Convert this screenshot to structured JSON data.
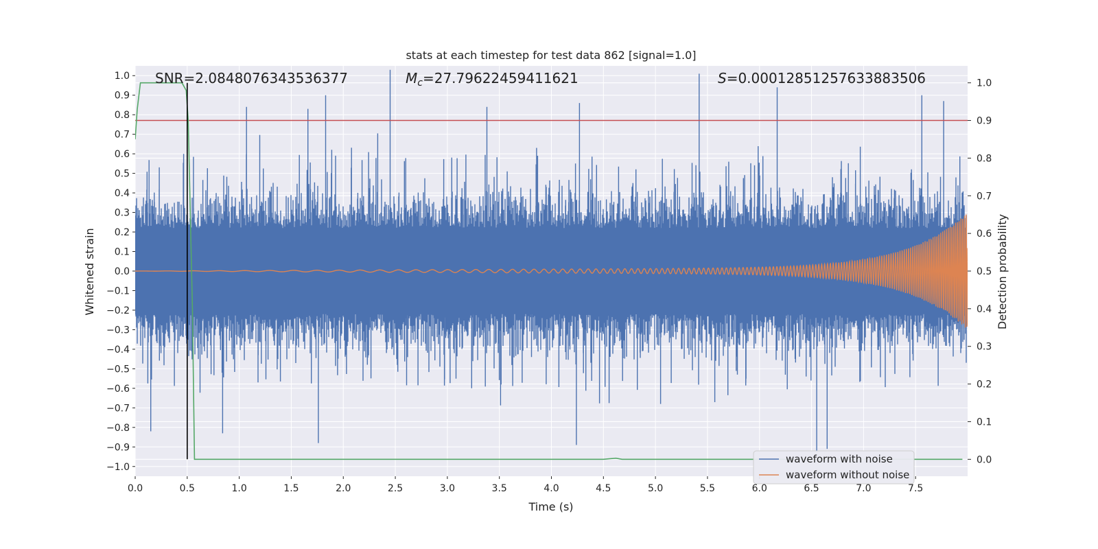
{
  "chart_data": {
    "type": "line",
    "title": "stats at each timestep for test data 862 [signal=1.0]",
    "xlabel": "Time (s)",
    "ylabel": "Whitened strain",
    "y2label": "Detection probability",
    "xlim": [
      0.0,
      8.0
    ],
    "ylim": [
      -1.05,
      1.05
    ],
    "y2lim": [
      -0.045,
      1.045
    ],
    "grid": true,
    "legend_position": "bottom-right",
    "xticks": [
      "0.0",
      "0.5",
      "1.0",
      "1.5",
      "2.0",
      "2.5",
      "3.0",
      "3.5",
      "4.0",
      "4.5",
      "5.0",
      "5.5",
      "6.0",
      "6.5",
      "7.0",
      "7.5"
    ],
    "yticks": [
      "1.0",
      "0.9",
      "0.8",
      "0.7",
      "0.6",
      "0.5",
      "0.4",
      "0.3",
      "0.2",
      "0.1",
      "0.0",
      "−0.1",
      "−0.2",
      "−0.3",
      "−0.4",
      "−0.5",
      "−0.6",
      "−0.7",
      "−0.8",
      "−0.9",
      "−1.0"
    ],
    "y2ticks": [
      "1.0",
      "0.9",
      "0.8",
      "0.7",
      "0.6",
      "0.5",
      "0.4",
      "0.3",
      "0.2",
      "0.1",
      "0.0"
    ],
    "annotations": {
      "snr": "SNR=2.0848076343536377",
      "mc_symbol": "M",
      "mc_subscript": "c",
      "mc_value": "=27.79622459411621",
      "s_symbol": "S",
      "s_value": "=0.0001285125763388350​6"
    },
    "series": [
      {
        "name": "waveform with noise",
        "color": "#4c72b0",
        "axis": "left",
        "description_values": {
          "t_start": 0.0,
          "t_end": 7.99,
          "core_band": [
            -0.22,
            0.22
          ],
          "typical_max": 0.6,
          "typical_min": -0.6,
          "peaks": [
            {
              "t": 1.07,
              "y": 0.84
            },
            {
              "t": 1.66,
              "y": 0.83
            },
            {
              "t": 1.83,
              "y": 0.9
            },
            {
              "t": 2.45,
              "y": 1.03
            },
            {
              "t": 3.38,
              "y": 0.84
            },
            {
              "t": 4.27,
              "y": 0.86
            },
            {
              "t": 5.42,
              "y": 1.01
            },
            {
              "t": 6.17,
              "y": 0.94
            },
            {
              "t": 7.56,
              "y": 0.9
            },
            {
              "t": 7.77,
              "y": 0.87
            }
          ],
          "troughs": [
            {
              "t": 0.15,
              "y": -0.82
            },
            {
              "t": 0.84,
              "y": -0.83
            },
            {
              "t": 1.76,
              "y": -0.88
            },
            {
              "t": 4.24,
              "y": -0.89
            },
            {
              "t": 6.55,
              "y": -0.92
            },
            {
              "t": 6.65,
              "y": -0.91
            }
          ]
        }
      },
      {
        "name": "waveform without noise",
        "color": "#dd8452",
        "axis": "left",
        "chirp": {
          "t_start": 0.0,
          "t_end": 8.0,
          "f_start": 4,
          "f_end": 60,
          "amp_start": 0.0,
          "amp_mid": 0.02,
          "amp_end": 0.3
        }
      },
      {
        "name": "detection probability",
        "color": "#55a868",
        "axis": "right",
        "x": [
          0.0,
          0.02,
          0.05,
          0.08,
          0.15,
          0.3,
          0.45,
          0.49,
          0.51,
          0.55,
          0.57,
          0.6,
          1.0,
          2.0,
          3.0,
          4.0,
          4.5,
          4.62,
          4.68,
          5.0,
          6.0,
          7.0,
          7.95
        ],
        "y": [
          0.85,
          0.93,
          1.0,
          1.0,
          1.0,
          1.0,
          1.0,
          0.98,
          0.9,
          0.4,
          0.0,
          0.0,
          0.0,
          0.0,
          0.0,
          0.0,
          0.0,
          0.003,
          0.0,
          0.0,
          0.0,
          0.0,
          0.0
        ]
      },
      {
        "name": "threshold",
        "color": "#c44e52",
        "axis": "right",
        "y": 0.9
      },
      {
        "name": "trigger time",
        "color": "#000000",
        "axis": "right",
        "x": 0.5,
        "y_range": [
          0.0,
          1.0
        ]
      }
    ],
    "legend": [
      "waveform with noise",
      "waveform without noise"
    ]
  }
}
